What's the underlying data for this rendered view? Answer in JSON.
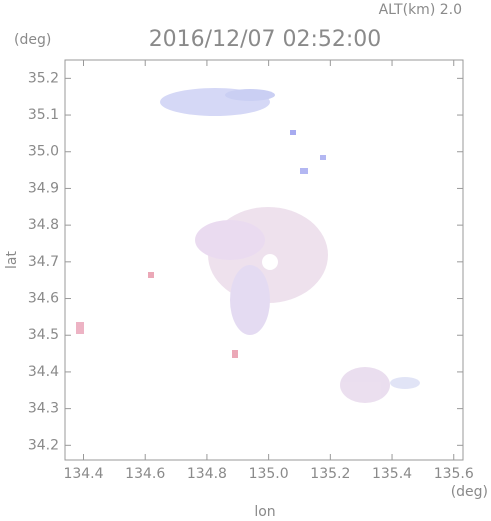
{
  "chart_data": {
    "type": "map",
    "title": "2016/12/07 02:52:00",
    "subtitle": "ALT(km)  2.0",
    "x_label": "lon",
    "y_label": "lat",
    "x_unit": "(deg)",
    "y_unit": "(deg)",
    "xlim": [
      134.34,
      135.63
    ],
    "ylim": [
      34.16,
      35.25
    ],
    "xticks": [
      134.4,
      134.6,
      134.8,
      {
        "value": 135,
        "label": "135.0"
      },
      135.2,
      135.4,
      135.6
    ],
    "yticks": [
      34.2,
      34.3,
      34.4,
      34.5,
      34.6,
      34.7,
      34.8,
      34.9,
      {
        "value": 35,
        "label": "35.0"
      },
      35.1,
      35.2
    ]
  }
}
